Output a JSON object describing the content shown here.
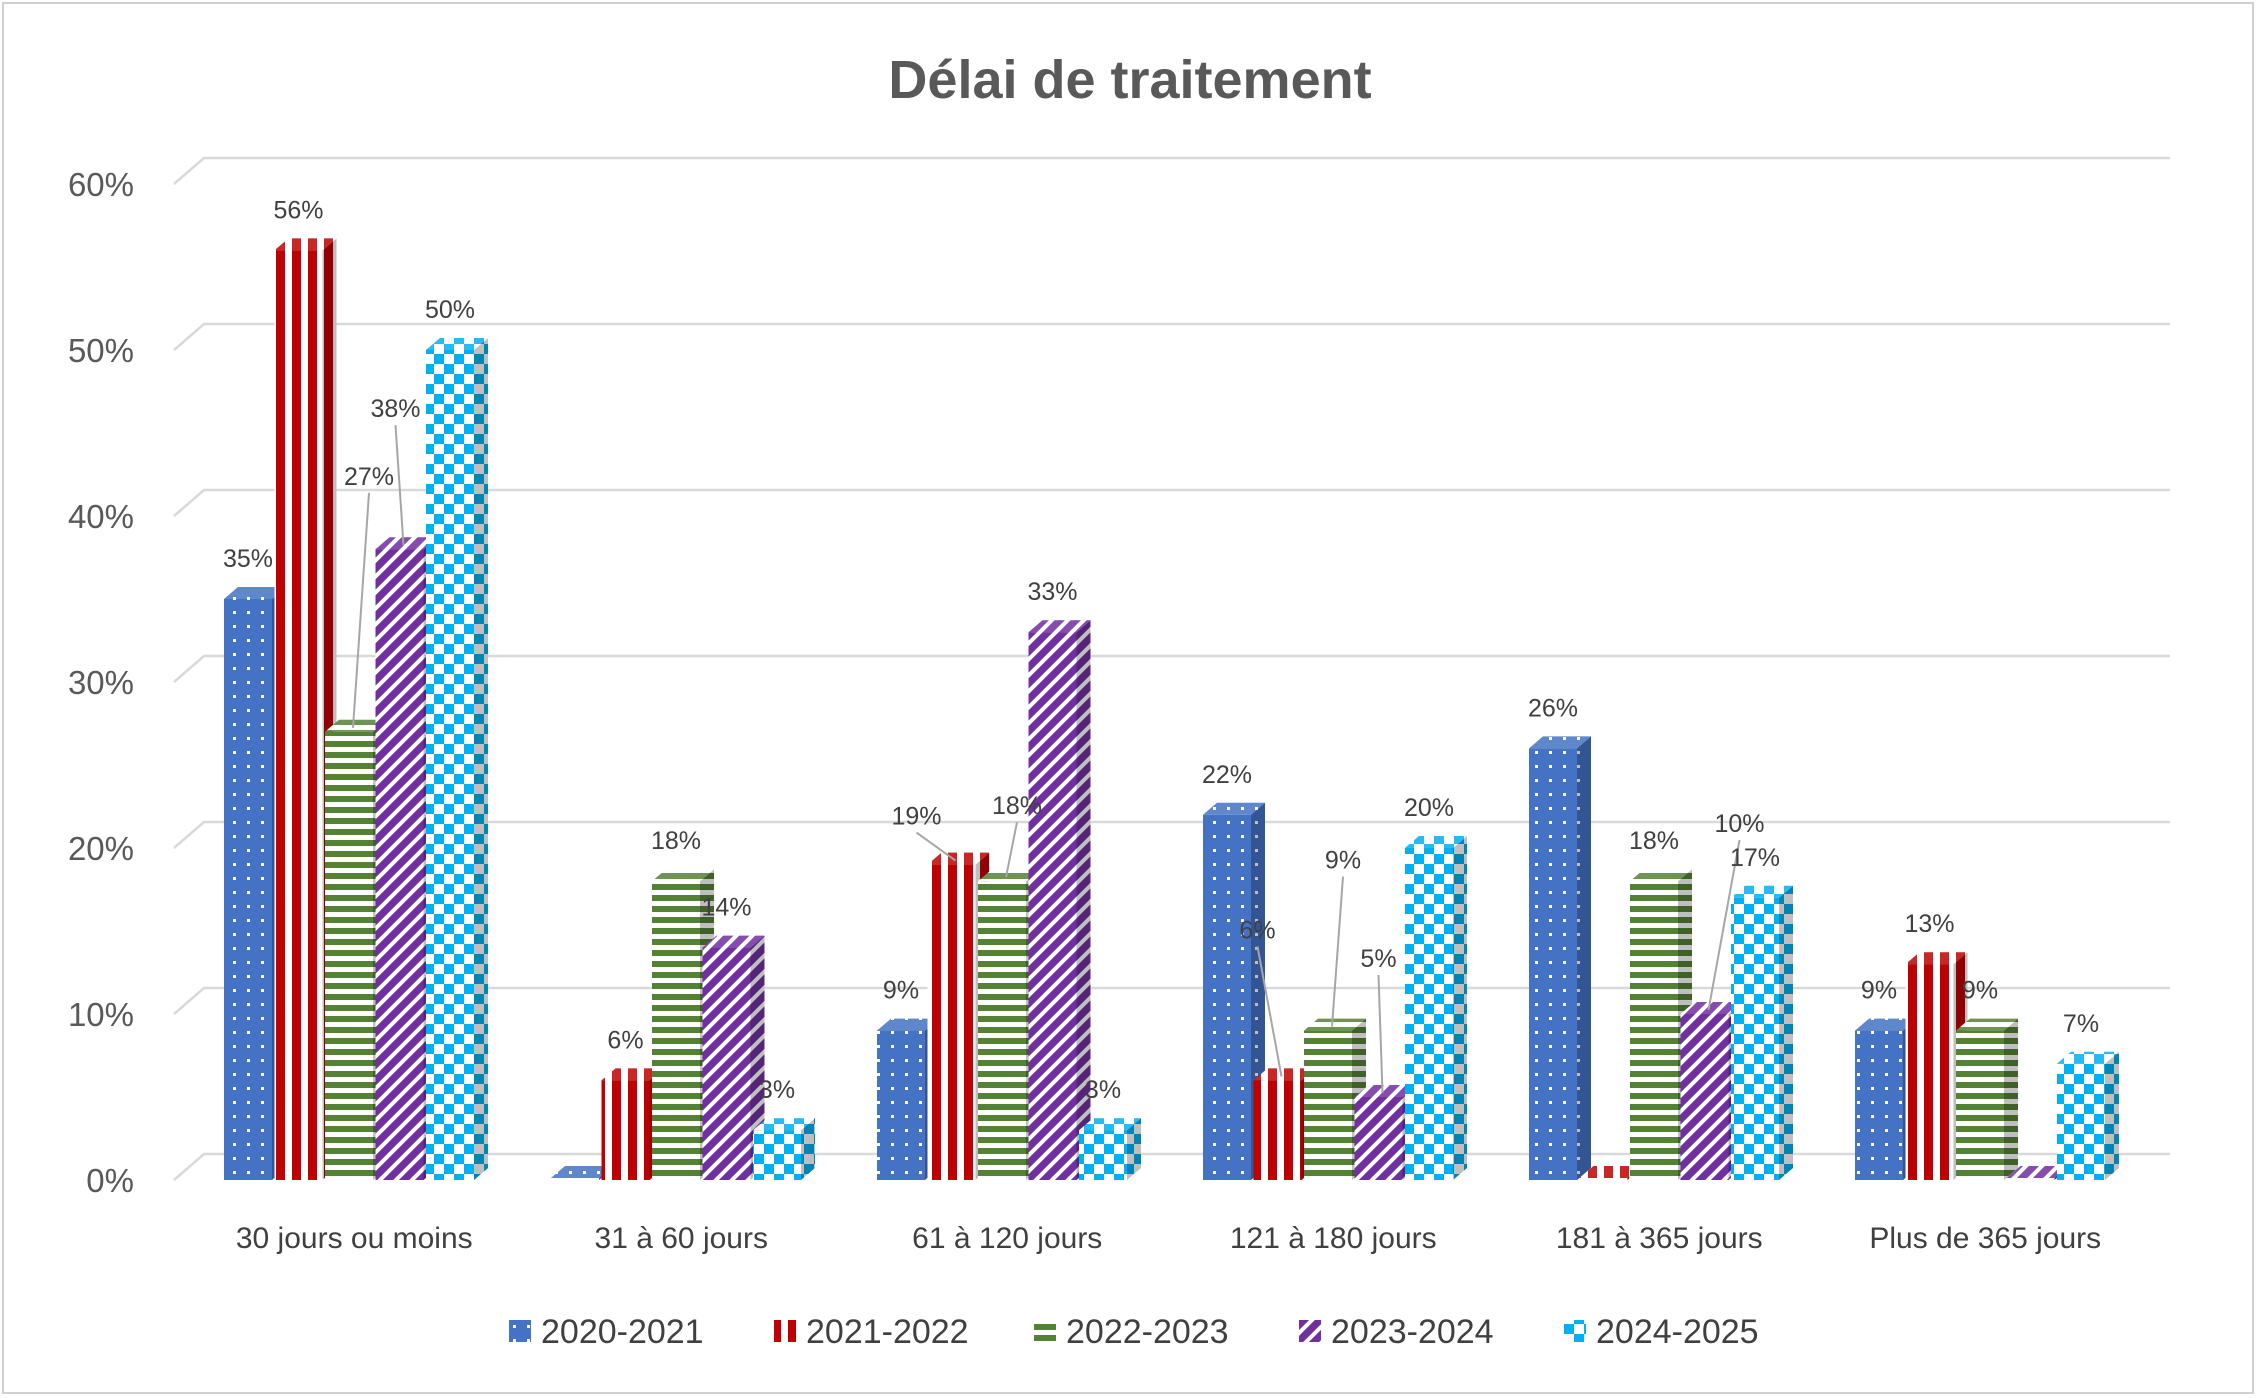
{
  "chart_data": {
    "type": "bar",
    "title": "Délai de traitement",
    "xlabel": "",
    "ylabel": "",
    "ylim": [
      0,
      60
    ],
    "yticks": [
      "0%",
      "10%",
      "20%",
      "30%",
      "40%",
      "50%",
      "60%"
    ],
    "categories": [
      "30 jours ou moins",
      "31 à 60 jours",
      "61 à 120 jours",
      "121 à 180 jours",
      "181 à 365 jours",
      "Plus de 365 jours"
    ],
    "series": [
      {
        "name": "2020-2021",
        "color": "#4472c4",
        "pattern": "dots",
        "values": [
          35,
          0,
          9,
          22,
          26,
          9
        ],
        "labels": [
          "35%",
          "",
          "9%",
          "22%",
          "26%",
          "9%"
        ]
      },
      {
        "name": "2021-2022",
        "color": "#c00000",
        "pattern": "vstripes",
        "values": [
          56,
          6,
          19,
          6,
          0,
          13
        ],
        "labels": [
          "56%",
          "6%",
          "19%",
          "6%",
          "",
          "13%"
        ]
      },
      {
        "name": "2022-2023",
        "color": "#548235",
        "pattern": "hstripes",
        "values": [
          27,
          18,
          18,
          9,
          18,
          9
        ],
        "labels": [
          "27%",
          "18%",
          "18%",
          "9%",
          "18%",
          "9%"
        ]
      },
      {
        "name": "2023-2024",
        "color": "#7030a0",
        "pattern": "diag",
        "values": [
          38,
          14,
          33,
          5,
          10,
          0
        ],
        "labels": [
          "38%",
          "14%",
          "33%",
          "5%",
          "10%",
          ""
        ]
      },
      {
        "name": "2024-2025",
        "color": "#00b0f0",
        "pattern": "checker",
        "values": [
          50,
          3,
          3,
          20,
          17,
          7
        ],
        "labels": [
          "50%",
          "3%",
          "3%",
          "20%",
          "17%",
          "7%"
        ]
      }
    ],
    "grid": true,
    "legend_position": "bottom"
  }
}
